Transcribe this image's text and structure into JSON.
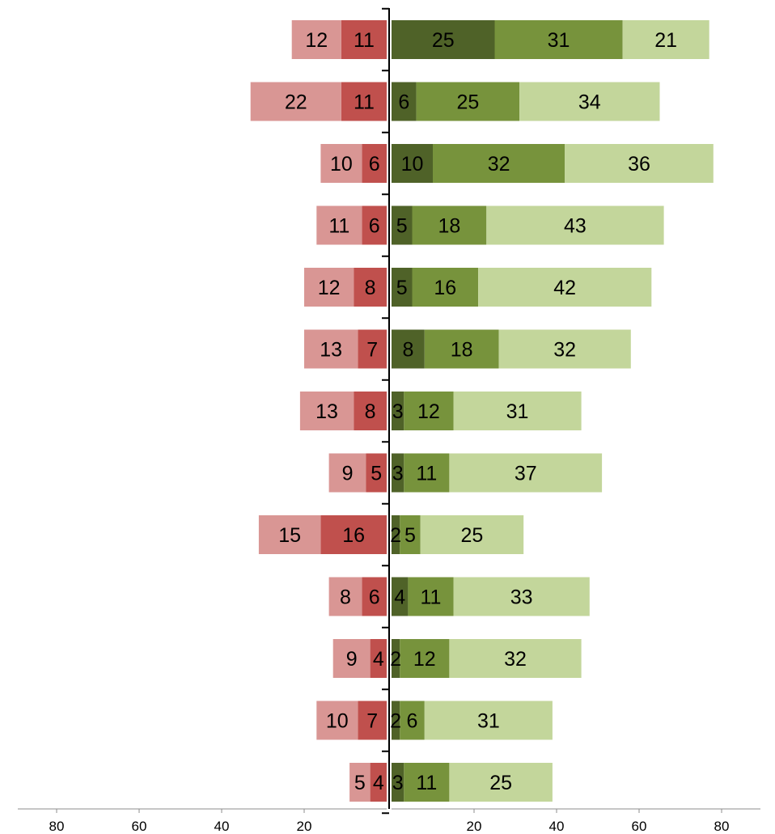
{
  "chart_data": {
    "type": "bar",
    "orientation": "horizontal",
    "stacking": "diverging",
    "title": "",
    "xlabel": "",
    "ylabel": "",
    "grid": false,
    "legend": "none",
    "xlim": [
      -90,
      90
    ],
    "x_tick_labels": [
      "80",
      "60",
      "40",
      "20",
      "20",
      "40",
      "60",
      "80"
    ],
    "x_tick_values": [
      -80,
      -60,
      -40,
      -20,
      20,
      40,
      60,
      80
    ],
    "rows": 13,
    "negative_series": [
      {
        "color": "#C0504D",
        "values": [
          11,
          11,
          6,
          6,
          8,
          7,
          8,
          5,
          16,
          6,
          4,
          7,
          4
        ]
      },
      {
        "color": "#D99694",
        "values": [
          12,
          22,
          10,
          11,
          12,
          13,
          13,
          9,
          15,
          8,
          9,
          10,
          5
        ]
      }
    ],
    "positive_series": [
      {
        "color": "#4F6228",
        "values": [
          25,
          6,
          10,
          5,
          5,
          8,
          3,
          3,
          2,
          4,
          2,
          2,
          3
        ]
      },
      {
        "color": "#77933C",
        "values": [
          31,
          25,
          32,
          18,
          16,
          18,
          12,
          11,
          5,
          11,
          12,
          6,
          11
        ]
      },
      {
        "color": "#C3D69B",
        "values": [
          21,
          34,
          36,
          43,
          42,
          32,
          31,
          37,
          25,
          33,
          32,
          31,
          25
        ]
      }
    ]
  }
}
